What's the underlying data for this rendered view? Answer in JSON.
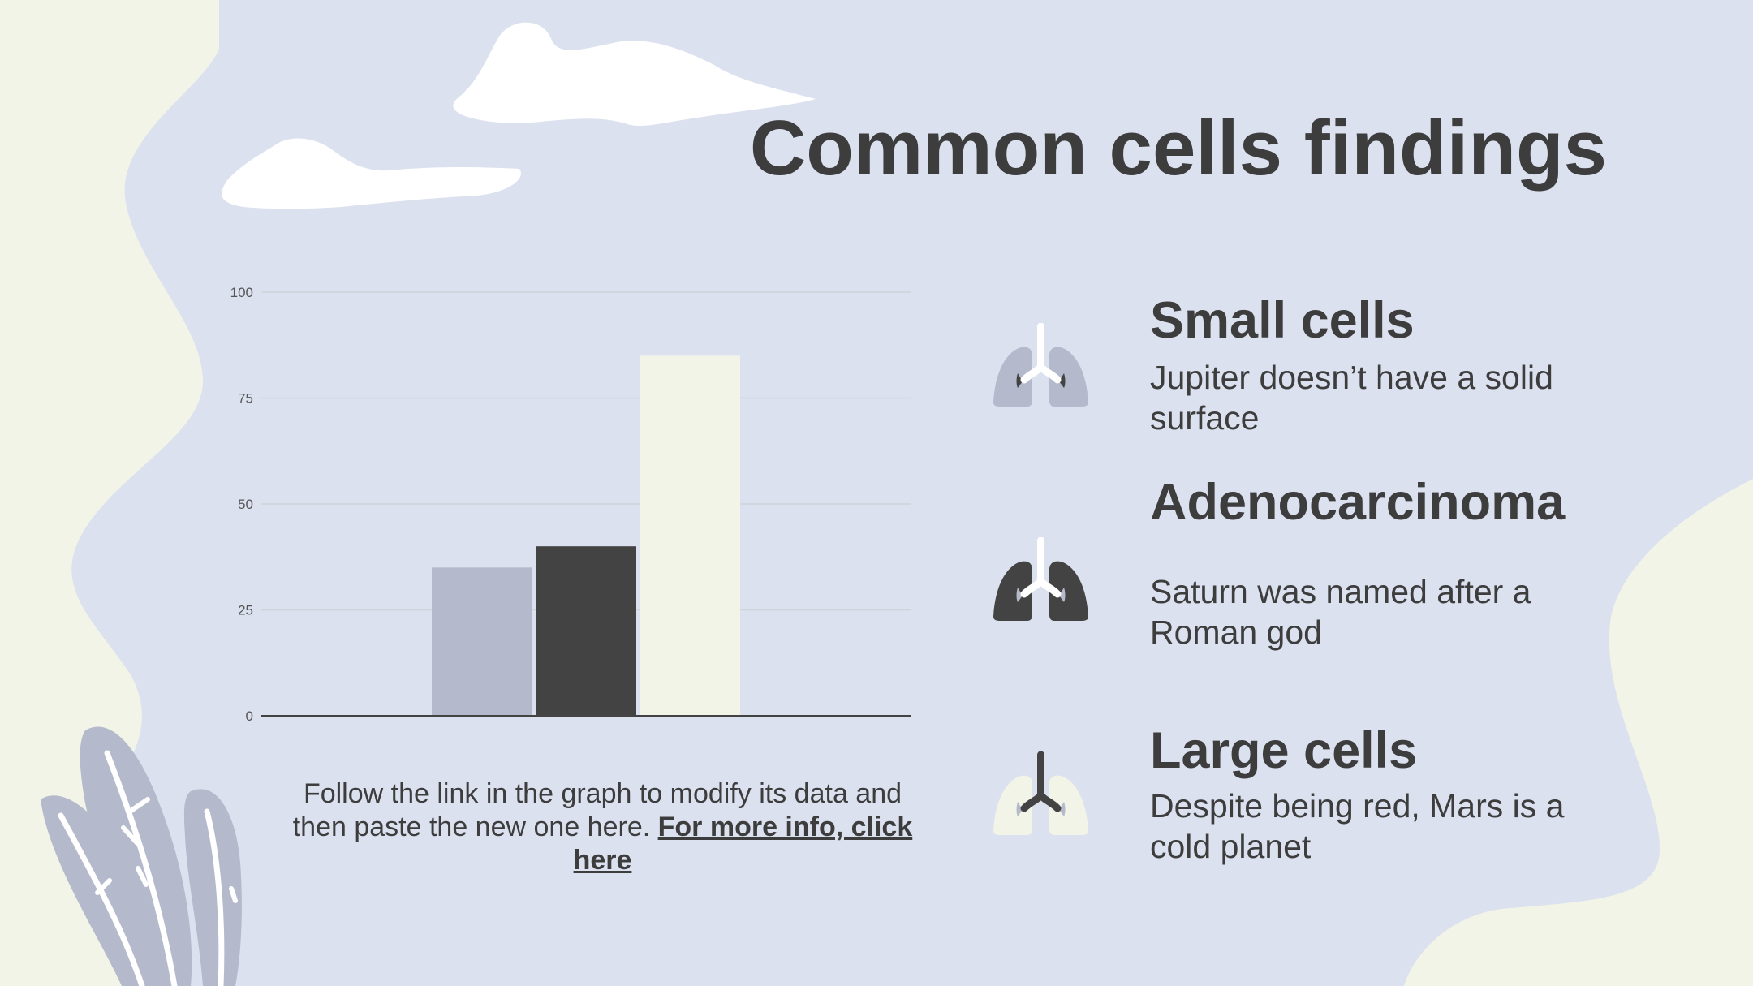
{
  "colors": {
    "background": "#dbe1ee",
    "cream": "#f2f4e8",
    "text": "#3d3d3e",
    "dark": "#434343",
    "grey_blue": "#b4bacb",
    "white": "#ffffff",
    "grid": "#cfd3da"
  },
  "title": "Common cells findings",
  "chart_data": {
    "type": "bar",
    "categories": [
      "Small cells",
      "Adenocarcinoma",
      "Large cells"
    ],
    "values": [
      35,
      40,
      85
    ],
    "colors": [
      "#b4bacb",
      "#434343",
      "#f2f4e8"
    ],
    "ylim": [
      0,
      100
    ],
    "yticks": [
      "0",
      "25",
      "50",
      "75",
      "100"
    ],
    "grid": true,
    "legend": "none"
  },
  "note": {
    "text": "Follow the link in the graph to modify its data and then paste the new one here. ",
    "link": "For more info, click here"
  },
  "items": [
    {
      "title": "Small cells",
      "desc": "Jupiter doesn’t have a solid surface",
      "icon": "lungs-icon"
    },
    {
      "title": "Adenocarcinoma",
      "desc": "Saturn was named after a Roman god",
      "icon": "lungs-icon"
    },
    {
      "title": "Large cells",
      "desc": "Despite being red, Mars is a cold planet",
      "icon": "lungs-icon"
    }
  ]
}
